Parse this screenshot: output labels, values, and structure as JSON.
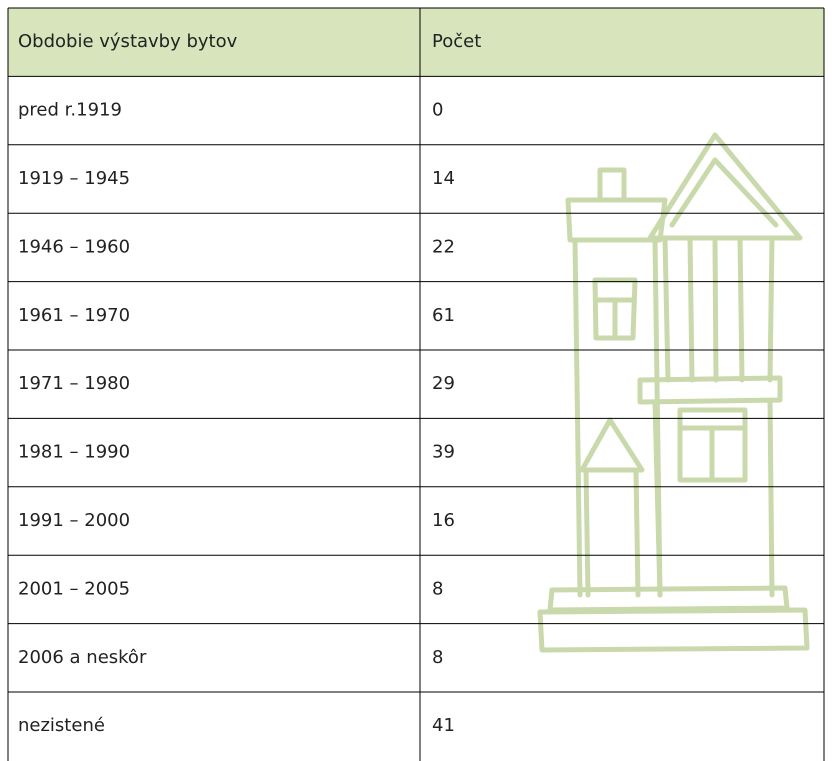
{
  "table": {
    "header": [
      "Obdobie výstavby bytov",
      "Počet"
    ],
    "rows": [
      [
        "pred r.1919",
        "0"
      ],
      [
        "1919 – 1945",
        "14"
      ],
      [
        "1946 – 1960",
        "22"
      ],
      [
        "1961 – 1970",
        "61"
      ],
      [
        "1971 – 1980",
        "29"
      ],
      [
        "1981 – 1990",
        "39"
      ],
      [
        "1991 – 2000",
        "16"
      ],
      [
        "2001 – 2005",
        "8"
      ],
      [
        "2006 a neskôr",
        "8"
      ],
      [
        "nezistené",
        "41"
      ]
    ]
  }
}
